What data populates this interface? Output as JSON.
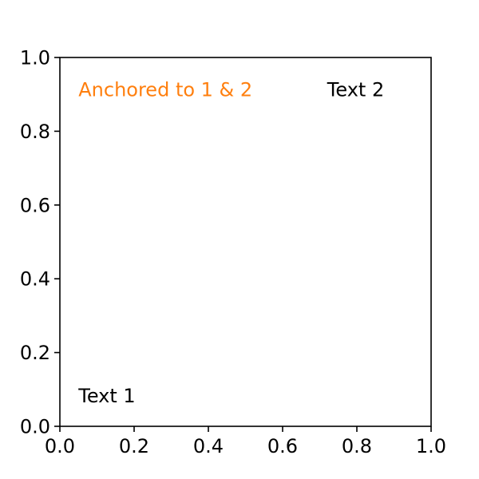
{
  "chart_data": {
    "type": "scatter",
    "title": "",
    "xlabel": "",
    "ylabel": "",
    "xlim": [
      0,
      1
    ],
    "ylim": [
      0,
      1
    ],
    "grid": false,
    "x_ticks": [
      {
        "value": 0.0,
        "label": "0.0"
      },
      {
        "value": 0.2,
        "label": "0.2"
      },
      {
        "value": 0.4,
        "label": "0.4"
      },
      {
        "value": 0.6,
        "label": "0.6"
      },
      {
        "value": 0.8,
        "label": "0.8"
      },
      {
        "value": 1.0,
        "label": "1.0"
      }
    ],
    "y_ticks": [
      {
        "value": 0.0,
        "label": "0.0"
      },
      {
        "value": 0.2,
        "label": "0.2"
      },
      {
        "value": 0.4,
        "label": "0.4"
      },
      {
        "value": 0.6,
        "label": "0.6"
      },
      {
        "value": 0.8,
        "label": "0.8"
      },
      {
        "value": 1.0,
        "label": "1.0"
      }
    ],
    "annotations": [
      {
        "name": "annotation-text-1",
        "text": "Text 1",
        "x": 0.05,
        "y": 0.05,
        "color": "#000000"
      },
      {
        "name": "annotation-text-2",
        "text": "Text 2",
        "x": 0.72,
        "y": 0.88,
        "color": "#000000"
      },
      {
        "name": "annotation-anchored",
        "text": "Anchored to 1 & 2",
        "x": 0.05,
        "y": 0.88,
        "color": "#ff7f0e"
      }
    ]
  }
}
